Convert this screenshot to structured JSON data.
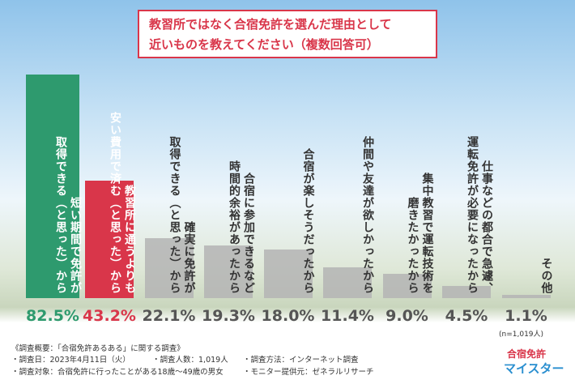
{
  "chart_data": {
    "type": "bar",
    "title": "教習所ではなく合宿免許を選んだ理由として",
    "subtitle": "近いものを教えてください（複数回答可）",
    "categories": [
      "短い期間で免許が\n取得できる（と思った）から",
      "教習所に通うよりも\n安い費用で済む（と思った）から",
      "確実に免許が\n取得できる（と思った）から",
      "合宿に参加できるなど\n時間的余裕があったから",
      "合宿が楽しそうだったから",
      "仲間や友達が欲しかったから",
      "集中教習で運転技術を\n磨きたかったから",
      "仕事などの都合で急遽、\n運転免許が必要になったから",
      "その他"
    ],
    "values": [
      82.5,
      43.2,
      22.1,
      19.3,
      18.0,
      11.4,
      9.0,
      4.5,
      1.1
    ],
    "value_labels": [
      "82.5%",
      "43.2%",
      "22.1%",
      "19.3%",
      "18.0%",
      "11.4%",
      "9.0%",
      "4.5%",
      "1.1%"
    ],
    "colors": [
      "#2e9a6e",
      "#d9364a",
      "#b4b4b4",
      "#b4b4b4",
      "#b4b4b4",
      "#b4b4b4",
      "#b4b4b4",
      "#b4b4b4",
      "#b4b4b4"
    ],
    "note": "(n=1,019人)"
  },
  "survey": {
    "heading": "《調査概要：「合宿免許あるある」に関する調査》",
    "date": "・調査日：2023年4月11日（火）",
    "count": "・調査人数：1,019人",
    "method": "・調査方法：インターネット調査",
    "target": "・調査対象：合宿免許に行ったことがある18歳〜49歳の男女",
    "provider": "・モニター提供元：ゼネラルリサーチ"
  },
  "logo": {
    "top": "合宿免許",
    "bottom": "マイスター"
  }
}
